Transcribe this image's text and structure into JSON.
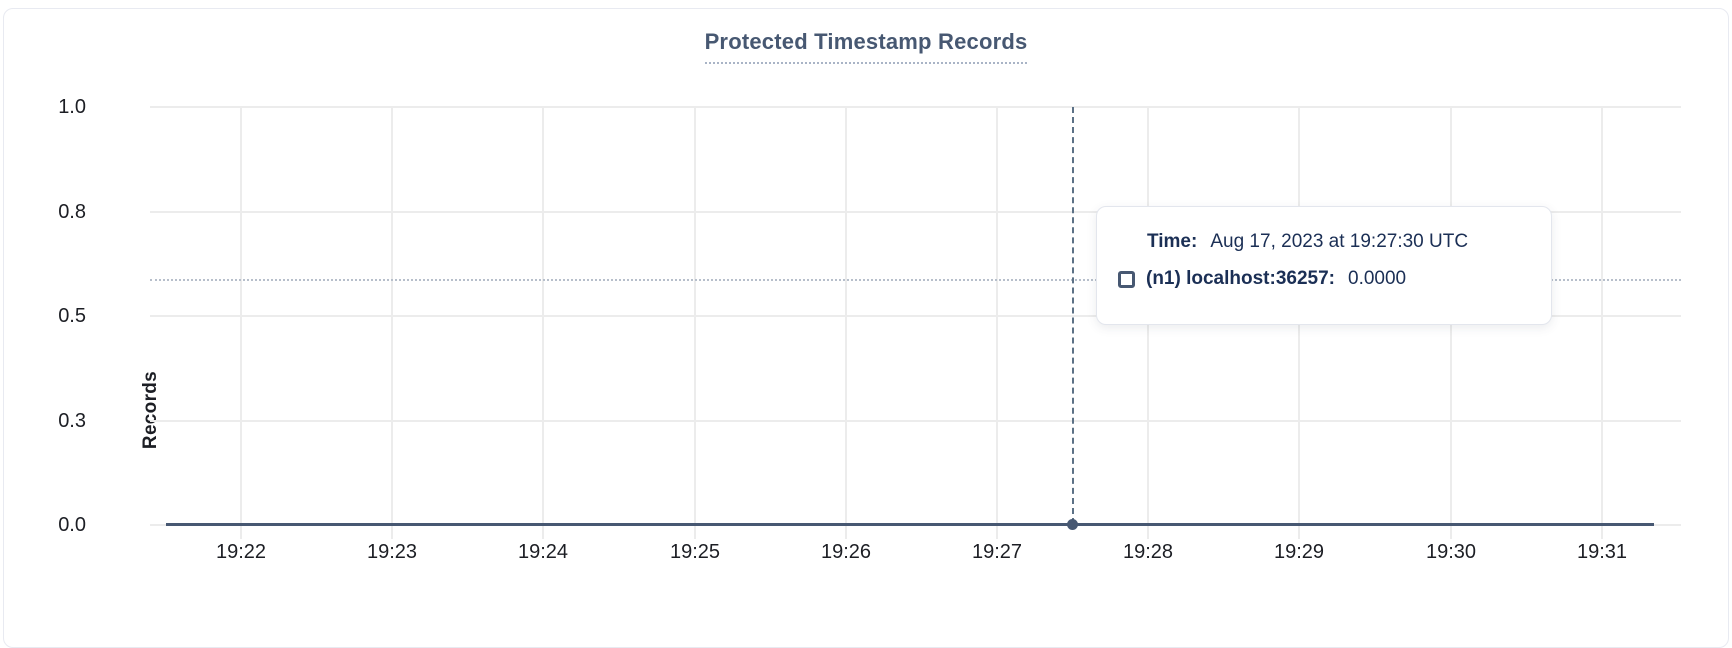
{
  "header": {
    "title": "Protected Timestamp Records"
  },
  "chart_data": {
    "type": "line",
    "title": "Protected Timestamp Records",
    "xlabel": "",
    "ylabel": "Records",
    "ylim": [
      0,
      1.0
    ],
    "grid": true,
    "legend_position": "none",
    "ytick_labels": [
      "1.0",
      "0.8",
      "0.5",
      "0.3",
      "0.0"
    ],
    "ytick_fracs_from_top": [
      0,
      0.25,
      0.5,
      0.75,
      1.0
    ],
    "categories": [
      "19:22",
      "19:23",
      "19:24",
      "19:25",
      "19:26",
      "19:27",
      "19:28",
      "19:29",
      "19:30",
      "19:31"
    ],
    "series": [
      {
        "name": "(n1) localhost:36257",
        "color": "#475872",
        "values": [
          0,
          0,
          0,
          0,
          0,
          0,
          0,
          0,
          0,
          0
        ]
      }
    ],
    "hover": {
      "time": "19:27:30",
      "tick_index": 5.5,
      "value": 0.0
    }
  },
  "tooltip": {
    "time_label": "Time:",
    "time_value": "Aug 17, 2023 at 19:27:30 UTC",
    "series_key": "(n1) localhost:36257:",
    "series_value": "0.0000"
  },
  "colors": {
    "title": "#475872",
    "axis_text": "#1c1e24",
    "gridline": "#ececec",
    "series_line": "#475872",
    "crosshair": "#5c7186",
    "hover_guide_dotted": "#b7bfcb",
    "tooltip_text": "#1b2f55"
  }
}
